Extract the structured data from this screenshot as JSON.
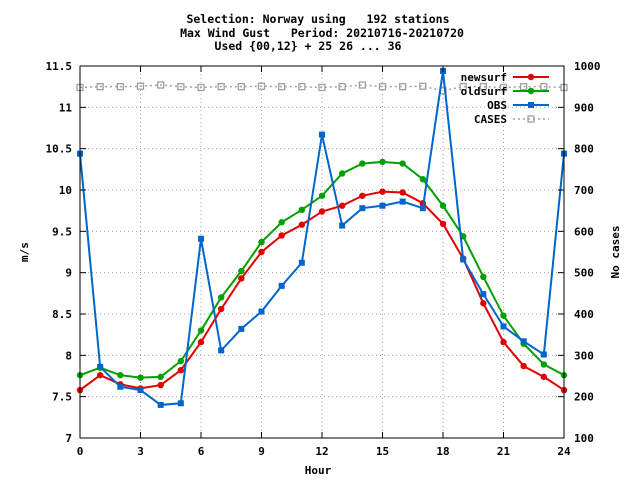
{
  "chart_data": {
    "type": "line",
    "title_lines": [
      "Selection: Norway using   192 stations",
      "Max Wind Gust   Period: 20210716-20210720",
      "Used {00,12} + 25 26 ... 36"
    ],
    "xlabel": "Hour",
    "ylabel": "m/s",
    "y2label": "No cases",
    "xlim": [
      0,
      24
    ],
    "ylim": [
      7,
      11.5
    ],
    "y2lim": [
      100,
      1000
    ],
    "x_ticks": [
      0,
      3,
      6,
      9,
      12,
      15,
      18,
      21,
      24
    ],
    "y_ticks": [
      7,
      7.5,
      8,
      8.5,
      9,
      9.5,
      10,
      10.5,
      11,
      11.5
    ],
    "y2_ticks": [
      100,
      200,
      300,
      400,
      500,
      600,
      700,
      800,
      900,
      1000
    ],
    "grid": true,
    "legend_position": "top-right",
    "x": [
      0,
      1,
      2,
      3,
      4,
      5,
      6,
      7,
      8,
      9,
      10,
      11,
      12,
      13,
      14,
      15,
      16,
      17,
      18,
      19,
      20,
      21,
      22,
      23,
      24
    ],
    "series": [
      {
        "name": "newsurf",
        "color": "#e00000",
        "marker": "filled-circle",
        "axis": "left",
        "values": [
          7.58,
          7.76,
          7.65,
          7.6,
          7.64,
          7.82,
          8.16,
          8.56,
          8.93,
          9.25,
          9.45,
          9.58,
          9.74,
          9.81,
          9.93,
          9.98,
          9.97,
          9.84,
          9.59,
          9.17,
          8.63,
          8.16,
          7.87,
          7.74,
          7.58
        ]
      },
      {
        "name": "oldsurf",
        "color": "#00a000",
        "marker": "filled-circle",
        "axis": "left",
        "values": [
          7.76,
          7.85,
          7.76,
          7.73,
          7.74,
          7.93,
          8.3,
          8.7,
          9.02,
          9.37,
          9.61,
          9.76,
          9.93,
          10.2,
          10.32,
          10.34,
          10.32,
          10.13,
          9.81,
          9.44,
          8.95,
          8.48,
          8.14,
          7.89,
          7.76
        ]
      },
      {
        "name": "OBS",
        "color": "#0066cc",
        "marker": "filled-square",
        "axis": "left",
        "values": [
          10.44,
          7.86,
          7.62,
          7.58,
          7.4,
          7.42,
          9.41,
          8.06,
          8.32,
          8.53,
          8.84,
          9.12,
          10.67,
          9.57,
          9.78,
          9.81,
          9.86,
          9.78,
          11.44,
          9.16,
          8.74,
          8.35,
          8.17,
          8.01,
          10.44
        ]
      },
      {
        "name": "CASES",
        "color": "#a0a0a0",
        "marker": "open-square",
        "line_style": "dotted",
        "axis": "right",
        "values": [
          948,
          950,
          950,
          951,
          954,
          950,
          948,
          950,
          950,
          951,
          950,
          950,
          948,
          950,
          954,
          950,
          950,
          951,
          940,
          950,
          950,
          948,
          950,
          950,
          948
        ]
      }
    ]
  }
}
